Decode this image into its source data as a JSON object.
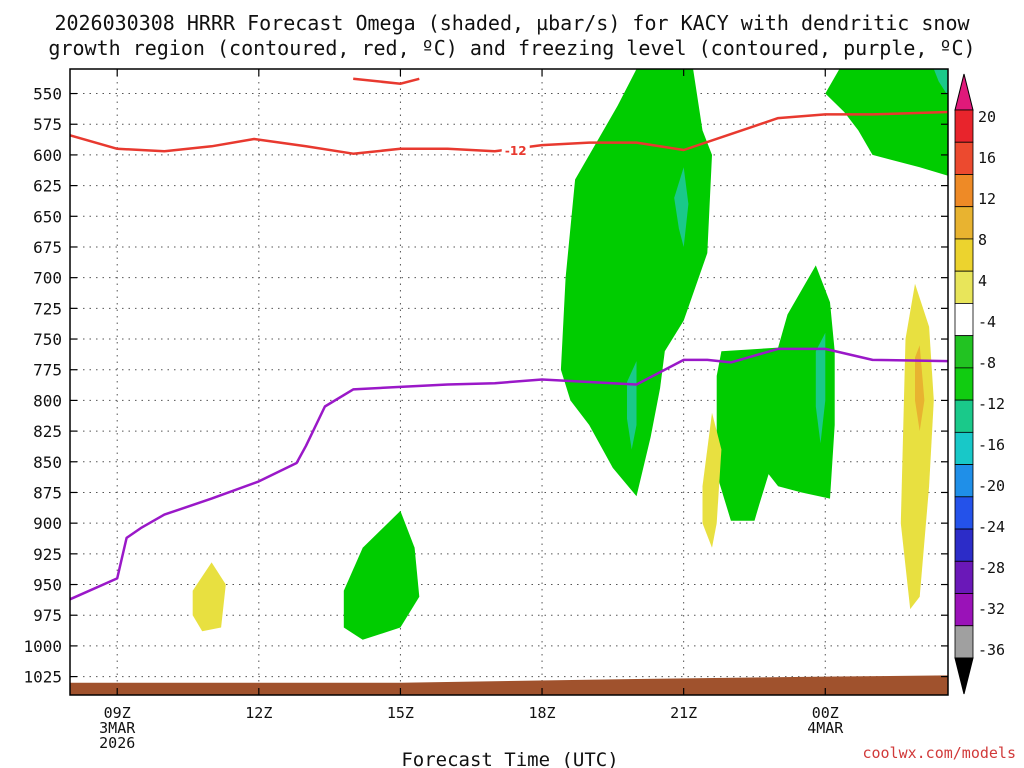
{
  "title_line1": "2026030308 HRRR Forecast Omega (shaded, µbar/s) for KACY with dendritic snow",
  "title_line2": "growth region (contoured, red, ºC) and freezing level (contoured, purple, ºC)",
  "xlabel": "Forecast Time (UTC)",
  "credit": "coolwx.com/models",
  "chart_data": {
    "type": "time-height contour",
    "xlim": [
      8,
      26.6
    ],
    "ylim": [
      1040,
      530
    ],
    "y_ticks": [
      550,
      575,
      600,
      625,
      650,
      675,
      700,
      725,
      750,
      775,
      800,
      825,
      850,
      875,
      900,
      925,
      950,
      975,
      1000,
      1025
    ],
    "x_ticks": [
      {
        "x": 9,
        "labels": [
          "09Z",
          "3MAR",
          "2026"
        ]
      },
      {
        "x": 12,
        "labels": [
          "12Z"
        ]
      },
      {
        "x": 15,
        "labels": [
          "15Z"
        ]
      },
      {
        "x": 18,
        "labels": [
          "18Z"
        ]
      },
      {
        "x": 21,
        "labels": [
          "21Z"
        ]
      },
      {
        "x": 24,
        "labels": [
          "00Z",
          "4MAR"
        ]
      }
    ],
    "colorbar": {
      "levels": [
        20,
        16,
        12,
        8,
        4,
        -4,
        -8,
        -12,
        -16,
        -20,
        -24,
        -28,
        -32,
        -36
      ],
      "colors": [
        "#e8242c",
        "#ec4a2f",
        "#ee8a26",
        "#e8b330",
        "#ecd32e",
        "#e8e55a",
        "#ffffff",
        "#22c322",
        "#11cc11",
        "#1ac98a",
        "#18c8c8",
        "#1f8fe8",
        "#2452ea",
        "#2c2cc8",
        "#6a18b8",
        "#9a12b8",
        "#a0a0a0"
      ],
      "top_arrow": "#e0197a",
      "bottom_arrow": "#000000"
    },
    "dgz_contour": {
      "label": "-12",
      "color": "#e8392f",
      "points": [
        [
          8,
          584
        ],
        [
          9,
          595
        ],
        [
          10,
          597
        ],
        [
          11,
          593
        ],
        [
          11.9,
          587
        ],
        [
          13,
          593
        ],
        [
          14,
          599
        ],
        [
          15,
          595
        ],
        [
          16,
          595
        ],
        [
          17,
          597
        ],
        [
          18,
          592
        ],
        [
          19,
          590
        ],
        [
          20,
          590
        ],
        [
          21,
          596
        ],
        [
          22,
          583
        ],
        [
          23,
          570
        ],
        [
          24,
          567
        ],
        [
          25,
          567
        ],
        [
          26.6,
          565
        ]
      ],
      "top_fragment": [
        [
          14,
          538
        ],
        [
          15,
          542
        ],
        [
          15.4,
          538
        ]
      ]
    },
    "freezing_level": {
      "color": "#9a18c8",
      "points": [
        [
          8,
          962
        ],
        [
          9,
          945
        ],
        [
          9.2,
          912
        ],
        [
          9.5,
          904
        ],
        [
          10,
          893
        ],
        [
          11,
          880
        ],
        [
          12,
          866
        ],
        [
          12.8,
          851
        ],
        [
          13,
          837
        ],
        [
          13.4,
          805
        ],
        [
          14,
          791
        ],
        [
          15,
          789
        ],
        [
          16,
          787
        ],
        [
          17,
          786
        ],
        [
          18,
          783
        ],
        [
          19,
          785
        ],
        [
          20,
          787
        ],
        [
          21,
          767
        ],
        [
          21.5,
          767
        ],
        [
          22,
          769
        ],
        [
          23,
          758
        ],
        [
          24,
          758
        ],
        [
          25,
          767
        ],
        [
          26.6,
          768
        ]
      ]
    },
    "omega_regions": [
      {
        "value": -6,
        "color": "#00cc00",
        "points": [
          [
            19.6,
            560
          ],
          [
            20,
            530
          ],
          [
            21.2,
            530
          ],
          [
            21.4,
            580
          ],
          [
            21.6,
            600
          ],
          [
            21.5,
            680
          ],
          [
            21,
            735
          ],
          [
            20.6,
            760
          ],
          [
            20.5,
            790
          ],
          [
            20.3,
            830
          ],
          [
            20,
            878
          ],
          [
            19.5,
            855
          ],
          [
            19,
            820
          ],
          [
            18.6,
            800
          ],
          [
            18.4,
            775
          ],
          [
            18.5,
            700
          ],
          [
            18.7,
            620
          ]
        ]
      },
      {
        "value": -10,
        "color": "#1ac98a",
        "points": [
          [
            20.8,
            635
          ],
          [
            21,
            610
          ],
          [
            21.1,
            640
          ],
          [
            21,
            675
          ],
          [
            20.9,
            660
          ]
        ]
      },
      {
        "value": -10,
        "color": "#1ac98a",
        "points": [
          [
            19.8,
            785
          ],
          [
            20,
            768
          ],
          [
            20,
            820
          ],
          [
            19.9,
            840
          ],
          [
            19.8,
            815
          ]
        ]
      },
      {
        "value": -6,
        "color": "#00cc00",
        "points": [
          [
            24.3,
            530
          ],
          [
            26.6,
            530
          ],
          [
            26.6,
            617
          ],
          [
            26,
            610
          ],
          [
            25,
            600
          ],
          [
            24.7,
            580
          ],
          [
            24.4,
            565
          ],
          [
            24,
            550
          ]
        ]
      },
      {
        "value": -10,
        "color": "#1ac98a",
        "points": [
          [
            26.3,
            530
          ],
          [
            26.6,
            530
          ],
          [
            26.6,
            552
          ],
          [
            26.4,
            540
          ]
        ]
      },
      {
        "value": -6,
        "color": "#00cc00",
        "points": [
          [
            21.7,
            780
          ],
          [
            21.8,
            760
          ],
          [
            23,
            757
          ],
          [
            23.2,
            730
          ],
          [
            23.5,
            710
          ],
          [
            23.8,
            690
          ],
          [
            24.1,
            720
          ],
          [
            24.2,
            760
          ],
          [
            24.2,
            820
          ],
          [
            24.1,
            880
          ],
          [
            23.5,
            875
          ],
          [
            23,
            870
          ],
          [
            22.8,
            860
          ],
          [
            22.6,
            885
          ],
          [
            22.5,
            898
          ],
          [
            22,
            898
          ],
          [
            21.7,
            860
          ]
        ]
      },
      {
        "value": -10,
        "color": "#1ac98a",
        "points": [
          [
            23.8,
            760
          ],
          [
            24,
            745
          ],
          [
            24,
            800
          ],
          [
            23.9,
            835
          ],
          [
            23.8,
            805
          ]
        ]
      },
      {
        "value": -6,
        "color": "#00cc00",
        "points": [
          [
            13.8,
            955
          ],
          [
            14.2,
            920
          ],
          [
            15,
            890
          ],
          [
            15.3,
            920
          ],
          [
            15.4,
            960
          ],
          [
            15,
            985
          ],
          [
            14.2,
            995
          ],
          [
            13.8,
            985
          ]
        ]
      },
      {
        "value": 6,
        "color": "#e8e040",
        "points": [
          [
            25.7,
            750
          ],
          [
            25.9,
            705
          ],
          [
            26.2,
            740
          ],
          [
            26.3,
            800
          ],
          [
            26.2,
            870
          ],
          [
            26,
            960
          ],
          [
            25.8,
            970
          ],
          [
            25.6,
            900
          ]
        ]
      },
      {
        "value": 10,
        "color": "#e8b330",
        "points": [
          [
            25.9,
            765
          ],
          [
            26,
            755
          ],
          [
            26.1,
            800
          ],
          [
            26,
            825
          ],
          [
            25.9,
            800
          ]
        ]
      },
      {
        "value": 6,
        "color": "#e8e040",
        "points": [
          [
            21.4,
            870
          ],
          [
            21.6,
            810
          ],
          [
            21.8,
            840
          ],
          [
            21.7,
            900
          ],
          [
            21.6,
            920
          ],
          [
            21.4,
            900
          ]
        ]
      },
      {
        "value": 6,
        "color": "#e8e040",
        "points": [
          [
            10.6,
            955
          ],
          [
            11,
            932
          ],
          [
            11.3,
            950
          ],
          [
            11.2,
            985
          ],
          [
            10.8,
            988
          ],
          [
            10.6,
            975
          ]
        ]
      }
    ],
    "terrain": {
      "color": "#a0522d",
      "points": [
        [
          8,
          1030
        ],
        [
          15,
          1030
        ],
        [
          20,
          1027
        ],
        [
          24,
          1025
        ],
        [
          26.6,
          1024
        ]
      ]
    }
  }
}
